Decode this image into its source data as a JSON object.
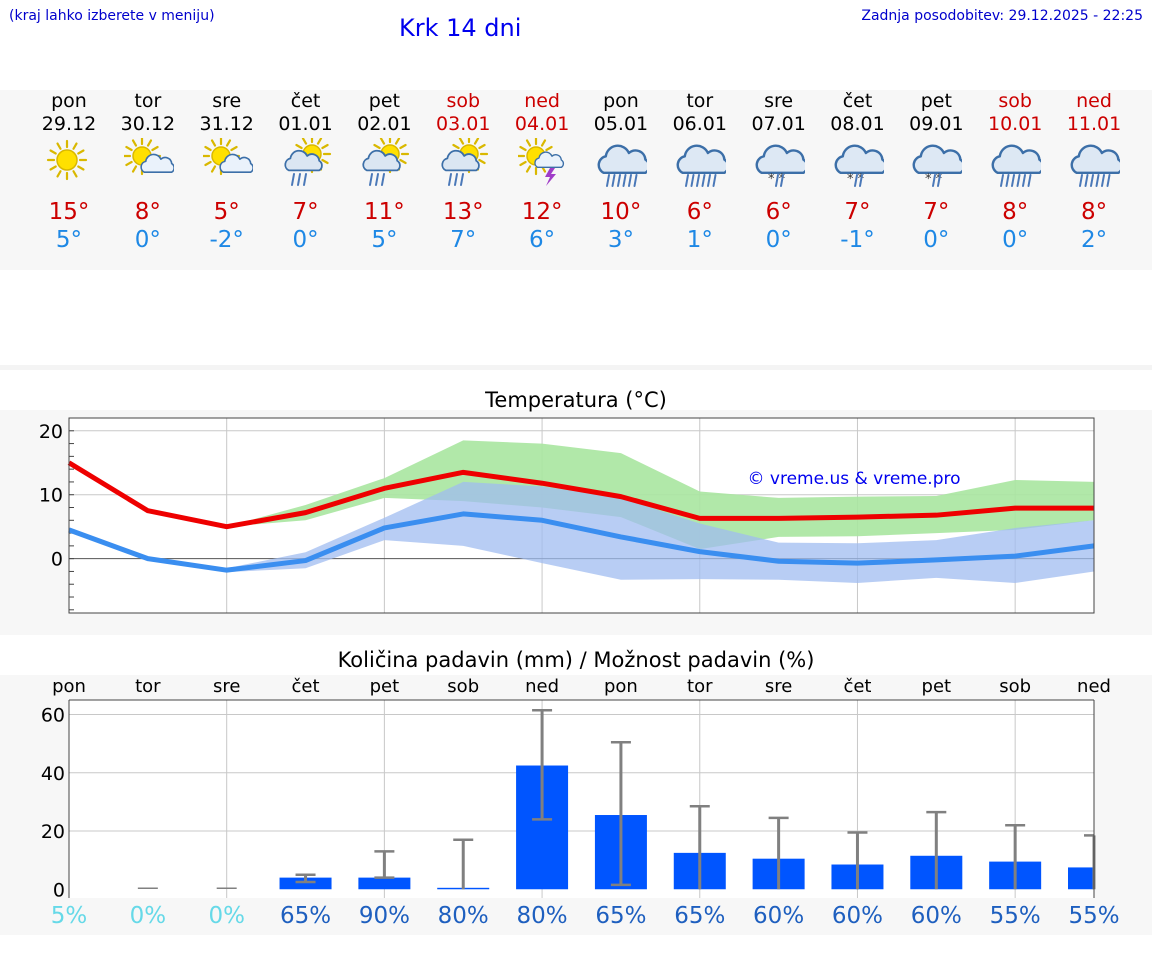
{
  "header": {
    "hint": "(kraj lahko izberete v meniju)",
    "title": "Krk 14 dni",
    "updated": "Zadnja posodobitev: 29.12.2025 - 22:25"
  },
  "days": [
    {
      "name": "pon",
      "date": "29.12",
      "weekend": false,
      "icon": "sun",
      "max": "15°",
      "min": "5°"
    },
    {
      "name": "tor",
      "date": "30.12",
      "weekend": false,
      "icon": "sun-cloud",
      "max": "8°",
      "min": "0°"
    },
    {
      "name": "sre",
      "date": "31.12",
      "weekend": false,
      "icon": "sun-cloud",
      "max": "5°",
      "min": "-2°"
    },
    {
      "name": "čet",
      "date": "01.01",
      "weekend": false,
      "icon": "sun-rain",
      "max": "7°",
      "min": "0°"
    },
    {
      "name": "pet",
      "date": "02.01",
      "weekend": false,
      "icon": "sun-rain",
      "max": "11°",
      "min": "5°"
    },
    {
      "name": "sob",
      "date": "03.01",
      "weekend": true,
      "icon": "sun-rain",
      "max": "13°",
      "min": "7°"
    },
    {
      "name": "ned",
      "date": "04.01",
      "weekend": true,
      "icon": "sun-storm",
      "max": "12°",
      "min": "6°"
    },
    {
      "name": "pon",
      "date": "05.01",
      "weekend": false,
      "icon": "rain",
      "max": "10°",
      "min": "3°"
    },
    {
      "name": "tor",
      "date": "06.01",
      "weekend": false,
      "icon": "rain",
      "max": "6°",
      "min": "1°"
    },
    {
      "name": "sre",
      "date": "07.01",
      "weekend": false,
      "icon": "snow-rain",
      "max": "6°",
      "min": "0°"
    },
    {
      "name": "čet",
      "date": "08.01",
      "weekend": false,
      "icon": "snow-rain",
      "max": "7°",
      "min": "-1°"
    },
    {
      "name": "pet",
      "date": "09.01",
      "weekend": false,
      "icon": "snow-rain",
      "max": "7°",
      "min": "0°"
    },
    {
      "name": "sob",
      "date": "10.01",
      "weekend": true,
      "icon": "rain",
      "max": "8°",
      "min": "0°"
    },
    {
      "name": "ned",
      "date": "11.01",
      "weekend": true,
      "icon": "rain",
      "max": "8°",
      "min": "2°"
    }
  ],
  "colors": {
    "max_line": "#ee0000",
    "min_line": "#3a8ef0",
    "max_band": "#a8e6a0",
    "min_band": "#a0bcf0",
    "bar": "#0055ff",
    "whisker": "#808080",
    "pct_low": "#66d9e8",
    "pct_high": "#1e5fbf",
    "weekend": "#cc0000"
  },
  "chart_data": [
    {
      "type": "line",
      "title": "Temperatura (°C)",
      "watermark": "© vreme.us & vreme.pro",
      "x": [
        0,
        1,
        2,
        3,
        4,
        5,
        6,
        7,
        8,
        9,
        10,
        11,
        12,
        13
      ],
      "ylim": [
        -8.5,
        22
      ],
      "yticks": [
        0,
        10,
        20
      ],
      "series": [
        {
          "name": "max",
          "values": [
            15,
            7.5,
            5,
            7.2,
            11,
            13.5,
            11.8,
            9.7,
            6.3,
            6.3,
            6.5,
            6.8,
            7.9,
            7.9
          ],
          "band_low": [
            15,
            7.5,
            5,
            6,
            9.5,
            9,
            8,
            6.5,
            1.5,
            3.4,
            3.5,
            4,
            4.5,
            6
          ],
          "band_high": [
            15,
            7.5,
            5,
            8.4,
            12.6,
            18.5,
            18,
            16.5,
            10.5,
            9.5,
            9.7,
            9.8,
            12.3,
            12
          ]
        },
        {
          "name": "min",
          "values": [
            4.5,
            0,
            -1.8,
            -0.3,
            4.8,
            7,
            6,
            3.4,
            1.1,
            -0.4,
            -0.7,
            -0.2,
            0.4,
            2
          ],
          "band_low": [
            4.5,
            -0.3,
            -2.1,
            -1.5,
            2.9,
            2,
            -0.7,
            -3.3,
            -3.2,
            -3.3,
            -3.8,
            -3,
            -3.8,
            -2
          ],
          "band_high": [
            4.5,
            0.3,
            -1.5,
            1,
            6.4,
            12,
            11.3,
            9.5,
            5.5,
            2.5,
            2.4,
            2.9,
            4.8,
            6
          ]
        }
      ]
    },
    {
      "type": "bar",
      "title": "Količina padavin (mm) / Možnost padavin (%)",
      "categories": [
        "pon",
        "tor",
        "sre",
        "čet",
        "pet",
        "sob",
        "ned",
        "pon",
        "tor",
        "sre",
        "čet",
        "pet",
        "sob",
        "ned"
      ],
      "values": [
        0,
        0,
        0,
        4,
        4,
        0.5,
        42.5,
        25.5,
        12.5,
        10.5,
        8.5,
        11.5,
        9.5,
        7.5
      ],
      "err_low": [
        0,
        0,
        0,
        2.5,
        4,
        0,
        24,
        1.5,
        0,
        0,
        0,
        0,
        0,
        0
      ],
      "err_high": [
        0,
        0,
        0,
        5,
        13,
        17,
        61.5,
        50.5,
        28.5,
        24.5,
        19.5,
        26.5,
        22,
        18.5
      ],
      "probability": [
        "5%",
        "0%",
        "0%",
        "65%",
        "90%",
        "80%",
        "80%",
        "65%",
        "65%",
        "60%",
        "60%",
        "60%",
        "55%",
        "55%"
      ],
      "ylim": [
        -3,
        65
      ],
      "yticks": [
        0,
        20,
        40,
        60
      ]
    }
  ]
}
